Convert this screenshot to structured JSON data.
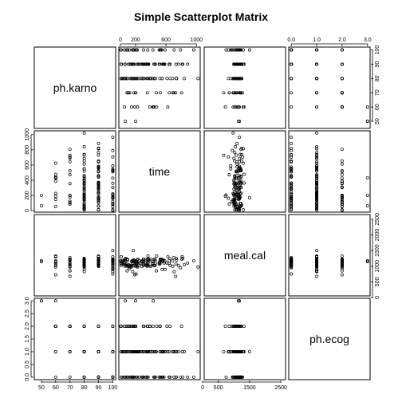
{
  "chart_data": {
    "type": "scatter-matrix",
    "title": "Simple Scatterplot Matrix",
    "variables": [
      {
        "name": "ph.karno",
        "range": [
          45,
          102
        ],
        "ticks": [
          50,
          60,
          70,
          80,
          90,
          100
        ]
      },
      {
        "name": "time",
        "range": [
          -20,
          1050
        ],
        "ticks": [
          0,
          200,
          400,
          600,
          800,
          1000
        ],
        "top_ticks": [
          0,
          200,
          600,
          1000
        ]
      },
      {
        "name": "meal.cal",
        "range": [
          50,
          2650
        ],
        "ticks": [
          0,
          500,
          1000,
          1500,
          2000,
          2500
        ],
        "bottom_ticks": [
          0,
          500,
          1500,
          2500
        ]
      },
      {
        "name": "ph.ecog",
        "range": [
          -0.1,
          3.1
        ],
        "ticks": [
          0.0,
          0.5,
          1.0,
          1.5,
          2.0,
          2.5,
          3.0
        ],
        "top_ticks": [
          0.0,
          1.0,
          2.0,
          3.0
        ]
      }
    ],
    "observations": {
      "ph.karno": [
        90,
        90,
        90,
        100,
        90,
        80,
        90,
        100,
        80,
        80,
        100,
        80,
        70,
        80,
        90,
        90,
        80,
        100,
        90,
        70,
        80,
        100,
        60,
        90,
        80,
        90,
        90,
        100,
        80,
        90,
        70,
        80,
        100,
        90,
        80,
        70,
        90,
        100,
        80,
        90,
        90,
        80,
        60,
        80,
        90,
        100,
        90,
        80,
        70,
        90,
        80,
        60,
        100,
        90,
        70,
        80,
        100,
        90,
        80,
        80,
        60,
        90,
        70,
        80,
        80,
        50,
        80,
        90,
        100,
        90,
        80,
        100,
        90,
        80,
        60,
        80,
        70,
        90,
        100,
        90,
        100,
        80,
        80,
        90,
        70,
        80,
        90,
        60,
        80,
        100,
        90,
        80,
        70,
        90,
        100,
        80,
        90,
        80,
        60,
        100,
        90,
        80,
        90,
        70,
        80,
        90,
        100,
        80,
        60,
        90,
        80,
        100,
        90,
        80,
        70,
        90,
        80,
        100,
        90,
        80,
        90,
        70,
        80,
        60,
        90,
        100,
        80,
        90,
        80,
        100,
        90,
        70,
        80,
        90,
        80,
        100,
        90,
        60,
        80,
        90,
        50,
        80,
        100,
        90,
        80,
        70,
        90,
        100,
        80,
        90
      ],
      "time": [
        306,
        455,
        110,
        210,
        883,
        1022,
        310,
        361,
        218,
        166,
        170,
        654,
        728,
        71,
        567,
        144,
        613,
        707,
        61,
        88,
        301,
        81,
        624,
        371,
        394,
        520,
        574,
        118,
        390,
        12,
        473,
        26,
        533,
        107,
        53,
        122,
        814,
        965,
        93,
        731,
        460,
        153,
        433,
        145,
        583,
        95,
        303,
        519,
        643,
        765,
        735,
        189,
        53,
        246,
        689,
        65,
        5,
        132,
        687,
        345,
        444,
        223,
        175,
        60,
        163,
        65,
        208,
        821,
        428,
        230,
        840,
        305,
        11,
        132,
        226,
        426,
        705,
        363,
        11,
        176,
        791,
        95,
        196,
        167,
        806,
        284,
        641,
        147,
        740,
        163,
        655,
        239,
        88,
        245,
        588,
        30,
        179,
        310,
        477,
        166,
        559,
        450,
        364,
        107,
        177,
        156,
        529,
        11,
        429,
        351,
        15,
        181,
        283,
        201,
        524,
        13,
        212,
        524,
        288,
        363,
        442,
        199,
        550,
        54,
        558,
        207,
        92,
        60,
        551,
        543,
        293,
        202,
        353,
        511,
        267,
        511,
        371,
        387,
        457,
        337,
        201,
        404,
        222,
        62,
        458,
        356,
        353,
        163,
        31,
        340
      ],
      "meal.cal": [
        1175,
        1225,
        1000,
        1150,
        1100,
        975,
        1150,
        1025,
        1000,
        1175,
        1500,
        1025,
        675,
        1250,
        1200,
        1000,
        1100,
        825,
        1000,
        850,
        1050,
        1025,
        1300,
        1175,
        1225,
        1075,
        1100,
        925,
        1000,
        1025,
        850,
        1175,
        1225,
        1000,
        1100,
        975,
        1300,
        1175,
        1225,
        1075,
        1100,
        1025,
        1150,
        975,
        1175,
        1200,
        1225,
        1100,
        1175,
        1025,
        1250,
        725,
        1200,
        1100,
        1000,
        1225,
        1175,
        1025,
        1175,
        1050,
        1025,
        1100,
        1200,
        1225,
        825,
        1175,
        1100,
        1250,
        1075,
        1225,
        1050,
        1025,
        1100,
        1000,
        975,
        1100,
        1275,
        1325,
        1300,
        1200,
        950,
        1025,
        1175,
        1100,
        1225,
        1000,
        1100,
        1150,
        1200,
        1175,
        1250,
        1025,
        1075,
        1175,
        900,
        1100,
        1150,
        1225,
        1325,
        1075,
        1150,
        1025,
        1100,
        1050,
        1200,
        1175,
        1225,
        1075,
        1100,
        1000,
        1150,
        1025,
        1175,
        1000,
        1225,
        1100,
        1075,
        1200,
        1150,
        1025,
        1225,
        1100,
        900,
        1050,
        1175,
        750,
        1000,
        1100,
        1175,
        1225,
        1150,
        1000,
        1200,
        1075,
        1100,
        1125,
        1225,
        1175,
        1025,
        1100,
        1150,
        1000,
        1200,
        1050,
        1175,
        1225,
        1075,
        1100,
        1150,
        1025
      ],
      "ph.ecog": [
        1,
        0,
        0,
        1,
        0,
        1,
        2,
        2,
        1,
        2,
        1,
        2,
        1,
        1,
        1,
        1,
        2,
        1,
        1,
        2,
        1,
        0,
        1,
        1,
        1,
        1,
        0,
        2,
        2,
        1,
        1,
        0,
        0,
        1,
        1,
        2,
        1,
        0,
        1,
        0,
        0,
        1,
        3,
        0,
        1,
        0,
        2,
        2,
        1,
        1,
        0,
        2,
        0,
        1,
        1,
        0,
        2,
        0,
        1,
        1,
        0,
        1,
        2,
        2,
        1,
        3,
        1,
        0,
        1,
        1,
        1,
        0,
        2,
        1,
        1,
        1,
        0,
        1,
        1,
        2,
        0,
        1,
        1,
        0,
        2,
        1,
        0,
        2,
        1,
        0,
        0,
        1,
        2,
        0,
        1,
        1,
        0,
        1,
        2,
        0,
        1,
        1,
        0,
        2,
        1,
        0,
        0,
        1,
        2,
        0,
        1,
        1,
        0,
        1,
        2,
        0,
        1,
        1,
        0,
        1,
        0,
        2,
        1,
        2,
        0,
        0,
        1,
        1,
        0,
        1,
        0,
        2,
        1,
        0,
        1,
        0,
        1,
        2,
        1,
        0,
        3,
        1,
        0,
        1,
        1,
        2,
        0,
        0,
        1,
        1
      ]
    }
  }
}
